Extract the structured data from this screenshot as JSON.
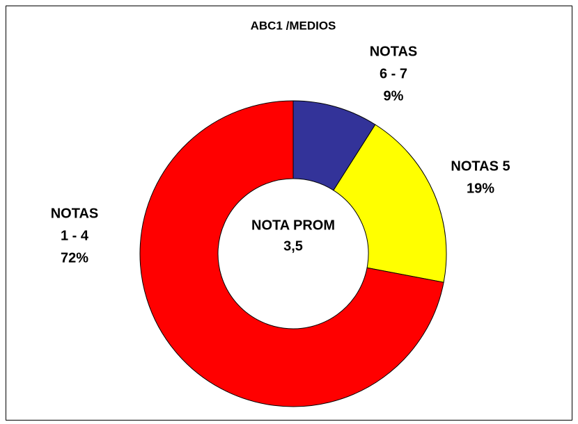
{
  "chart_data": {
    "type": "pie",
    "title": "ABC1 /MEDIOS",
    "categories": [
      [
        "NOTAS",
        "6 - 7"
      ],
      [
        "NOTAS 5"
      ],
      [
        "NOTAS",
        "1 - 4"
      ]
    ],
    "values": [
      9,
      19,
      72
    ],
    "value_labels": [
      "9%",
      "19%",
      "72%"
    ],
    "colors": [
      "#333399",
      "#ffff00",
      "#ff0000"
    ],
    "center_label": [
      "NOTA PROM",
      "3,5"
    ]
  }
}
